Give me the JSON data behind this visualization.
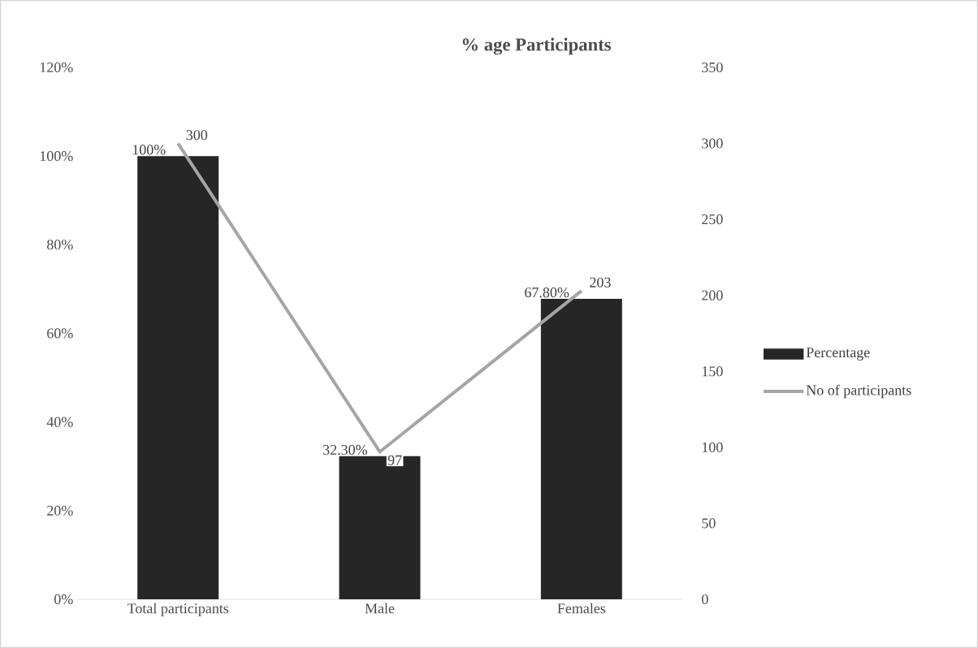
{
  "chart_data": {
    "type": "bar",
    "title": "% age Participants",
    "categories": [
      "Total participants",
      "Male",
      "Females"
    ],
    "series": [
      {
        "name": "Percentage",
        "color": "#262626",
        "values": [
          100,
          32.3,
          67.8
        ],
        "value_labels": [
          "100%",
          "32.30%",
          "67.80%"
        ]
      },
      {
        "name": "No of participants",
        "type": "line",
        "axis": "y2",
        "color": "#a5a5a5",
        "values": [
          300,
          97,
          203
        ],
        "value_labels": [
          "300",
          "97",
          "203"
        ]
      }
    ],
    "ylim": [
      0,
      120
    ],
    "yticks": [
      {
        "value": 0,
        "label": "0%"
      },
      {
        "value": 20,
        "label": "20%"
      },
      {
        "value": 40,
        "label": "40%"
      },
      {
        "value": 60,
        "label": "60%"
      },
      {
        "value": 80,
        "label": "80%"
      },
      {
        "value": 100,
        "label": "100%"
      },
      {
        "value": 120,
        "label": "120%"
      }
    ],
    "y2lim": [
      0,
      350
    ],
    "y2ticks": [
      0,
      50,
      100,
      150,
      200,
      250,
      300,
      350
    ],
    "grid": false,
    "legend": "right",
    "marker": "none",
    "line_style": "solid"
  }
}
